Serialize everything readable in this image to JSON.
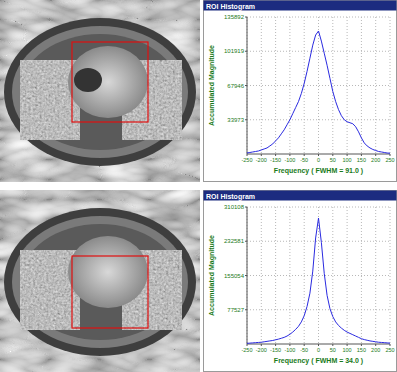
{
  "chart_data": [
    {
      "type": "line",
      "title": "ROI Histogram",
      "x_label": "Frequency ( FWHM = 91.0 )",
      "y_label": "Accumulated Magnitude",
      "x": [
        -250,
        -240,
        -230,
        -220,
        -210,
        -200,
        -190,
        -180,
        -170,
        -160,
        -150,
        -140,
        -130,
        -120,
        -110,
        -100,
        -90,
        -80,
        -70,
        -60,
        -50,
        -40,
        -30,
        -20,
        -10,
        0,
        10,
        20,
        30,
        40,
        50,
        60,
        70,
        80,
        90,
        100,
        110,
        120,
        130,
        140,
        150,
        160,
        170,
        180,
        190,
        200,
        210,
        220,
        230,
        240,
        250
      ],
      "values": [
        1000,
        1500,
        2000,
        2500,
        3000,
        4000,
        5000,
        6000,
        8000,
        10000,
        13000,
        16000,
        20000,
        24000,
        29000,
        34000,
        40000,
        46000,
        52000,
        60000,
        70000,
        82000,
        95000,
        108000,
        118000,
        122000,
        112000,
        100000,
        88000,
        75000,
        62000,
        52000,
        44000,
        38000,
        34000,
        32000,
        31000,
        30000,
        27000,
        22000,
        16000,
        11000,
        8000,
        6000,
        4500,
        3500,
        2500,
        2000,
        1500,
        1000,
        800
      ],
      "color": "#2a2ae0",
      "xlim": [
        -250,
        250
      ],
      "xticks": [
        -250,
        -200,
        -150,
        -100,
        -50,
        0,
        50,
        100,
        150,
        200,
        250
      ],
      "ylim": [
        0,
        135892
      ],
      "yticks": [
        33973,
        67946,
        101919,
        135892
      ],
      "grid": true
    },
    {
      "type": "line",
      "title": "ROI Histogram",
      "x_label": "Frequency ( FWHM = 34.0 )",
      "y_label": "Accumulated Magnitude",
      "x": [
        -250,
        -240,
        -230,
        -220,
        -210,
        -200,
        -190,
        -180,
        -170,
        -160,
        -150,
        -140,
        -130,
        -120,
        -110,
        -100,
        -90,
        -80,
        -70,
        -60,
        -50,
        -40,
        -30,
        -20,
        -10,
        0,
        10,
        20,
        30,
        40,
        50,
        60,
        70,
        80,
        90,
        100,
        110,
        120,
        130,
        140,
        150,
        160,
        170,
        180,
        190,
        200,
        210,
        220,
        230,
        240,
        250
      ],
      "values": [
        1500,
        2000,
        2500,
        3000,
        3500,
        4000,
        5000,
        6000,
        7000,
        8000,
        9500,
        11000,
        13000,
        15000,
        18000,
        22000,
        27000,
        33000,
        40000,
        50000,
        64000,
        85000,
        115000,
        165000,
        240000,
        285000,
        230000,
        160000,
        110000,
        80000,
        62000,
        50000,
        42000,
        36000,
        31000,
        27000,
        24000,
        21000,
        18000,
        15000,
        12000,
        10000,
        8500,
        7000,
        6000,
        5000,
        4000,
        3500,
        3000,
        2500,
        2000
      ],
      "color": "#2a2ae0",
      "xlim": [
        -250,
        250
      ],
      "xticks": [
        -250,
        -200,
        -150,
        -100,
        -50,
        0,
        50,
        100,
        150,
        200,
        250
      ],
      "ylim": [
        0,
        310108
      ],
      "yticks": [
        77527,
        155054,
        232581,
        310108
      ],
      "grid": true
    }
  ]
}
